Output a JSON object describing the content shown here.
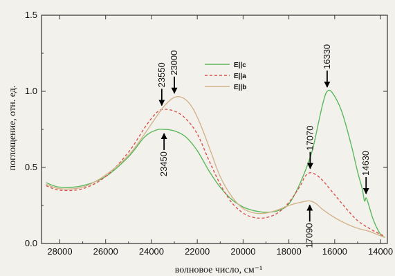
{
  "chart_data": {
    "type": "line",
    "xlabel": "волновое число, см⁻¹",
    "ylabel": "поглощение, отн. ед.",
    "xlim": [
      28800,
      13700
    ],
    "ylim": [
      0,
      1.5
    ],
    "x_ticks": [
      28000,
      26000,
      24000,
      22000,
      20000,
      18000,
      16000,
      14000
    ],
    "x_tick_labels": [
      "28000",
      "26000",
      "24000",
      "22000",
      "20000",
      "18000",
      "16000",
      "14000"
    ],
    "y_ticks": [
      0,
      0.5,
      1.0,
      1.5
    ],
    "y_tick_labels": [
      "0.0",
      "0.5",
      "1.0",
      "1.5"
    ],
    "grid": false,
    "legend_position": "upper-middle",
    "series": [
      {
        "name": "E||c",
        "color": "#5cb85c",
        "style": "solid",
        "points": [
          [
            28600,
            0.4
          ],
          [
            28000,
            0.37
          ],
          [
            27000,
            0.38
          ],
          [
            26000,
            0.44
          ],
          [
            25000,
            0.57
          ],
          [
            24300,
            0.7
          ],
          [
            23800,
            0.745
          ],
          [
            23450,
            0.75
          ],
          [
            23000,
            0.74
          ],
          [
            22500,
            0.7
          ],
          [
            22000,
            0.61
          ],
          [
            21500,
            0.48
          ],
          [
            21000,
            0.37
          ],
          [
            20500,
            0.29
          ],
          [
            20000,
            0.24
          ],
          [
            19500,
            0.215
          ],
          [
            19000,
            0.205
          ],
          [
            18500,
            0.215
          ],
          [
            18000,
            0.26
          ],
          [
            17500,
            0.4
          ],
          [
            17000,
            0.6
          ],
          [
            16700,
            0.8
          ],
          [
            16500,
            0.93
          ],
          [
            16330,
            1.0
          ],
          [
            16100,
            0.99
          ],
          [
            15700,
            0.87
          ],
          [
            15300,
            0.66
          ],
          [
            15000,
            0.47
          ],
          [
            14800,
            0.36
          ],
          [
            14700,
            0.28
          ],
          [
            14630,
            0.3
          ],
          [
            14550,
            0.27
          ],
          [
            14300,
            0.15
          ],
          [
            14000,
            0.06
          ],
          [
            13800,
            0.04
          ]
        ]
      },
      {
        "name": "E||a",
        "color": "#d9534f",
        "style": "dashed",
        "points": [
          [
            28600,
            0.38
          ],
          [
            28000,
            0.35
          ],
          [
            27000,
            0.36
          ],
          [
            26000,
            0.44
          ],
          [
            25000,
            0.6
          ],
          [
            24300,
            0.76
          ],
          [
            23900,
            0.84
          ],
          [
            23550,
            0.88
          ],
          [
            23000,
            0.87
          ],
          [
            22500,
            0.82
          ],
          [
            22000,
            0.72
          ],
          [
            21500,
            0.55
          ],
          [
            21000,
            0.39
          ],
          [
            20500,
            0.27
          ],
          [
            20000,
            0.2
          ],
          [
            19500,
            0.17
          ],
          [
            19000,
            0.17
          ],
          [
            18500,
            0.2
          ],
          [
            18000,
            0.27
          ],
          [
            17500,
            0.38
          ],
          [
            17300,
            0.44
          ],
          [
            17070,
            0.465
          ],
          [
            16800,
            0.45
          ],
          [
            16500,
            0.41
          ],
          [
            16000,
            0.32
          ],
          [
            15500,
            0.23
          ],
          [
            15000,
            0.15
          ],
          [
            14500,
            0.1
          ],
          [
            14000,
            0.06
          ],
          [
            13800,
            0.05
          ]
        ]
      },
      {
        "name": "E||b",
        "color": "#d2b48c",
        "style": "solid",
        "points": [
          [
            28600,
            0.39
          ],
          [
            28000,
            0.36
          ],
          [
            27000,
            0.37
          ],
          [
            26000,
            0.45
          ],
          [
            25000,
            0.58
          ],
          [
            24300,
            0.72
          ],
          [
            23800,
            0.83
          ],
          [
            23400,
            0.91
          ],
          [
            23000,
            0.96
          ],
          [
            22600,
            0.955
          ],
          [
            22200,
            0.89
          ],
          [
            21800,
            0.76
          ],
          [
            21400,
            0.6
          ],
          [
            21000,
            0.44
          ],
          [
            20500,
            0.31
          ],
          [
            20000,
            0.23
          ],
          [
            19500,
            0.2
          ],
          [
            19000,
            0.2
          ],
          [
            18500,
            0.22
          ],
          [
            18000,
            0.25
          ],
          [
            17500,
            0.27
          ],
          [
            17090,
            0.28
          ],
          [
            16800,
            0.26
          ],
          [
            16500,
            0.22
          ],
          [
            16000,
            0.17
          ],
          [
            15500,
            0.13
          ],
          [
            15000,
            0.1
          ],
          [
            14500,
            0.08
          ],
          [
            14000,
            0.05
          ],
          [
            13800,
            0.04
          ]
        ]
      }
    ],
    "annotations": [
      {
        "text": "23550",
        "x": 23550,
        "y": 0.88,
        "arrow": "down"
      },
      {
        "text": "23000",
        "x": 23000,
        "y": 0.96,
        "arrow": "down"
      },
      {
        "text": "23450",
        "x": 23450,
        "y": 0.75,
        "arrow": "up"
      },
      {
        "text": "17070",
        "x": 17070,
        "y": 0.465,
        "arrow": "down"
      },
      {
        "text": "16330",
        "x": 16330,
        "y": 1.0,
        "arrow": "down"
      },
      {
        "text": "14630",
        "x": 14630,
        "y": 0.3,
        "arrow": "down"
      },
      {
        "text": "17090",
        "x": 17090,
        "y": 0.28,
        "arrow": "up"
      }
    ]
  }
}
